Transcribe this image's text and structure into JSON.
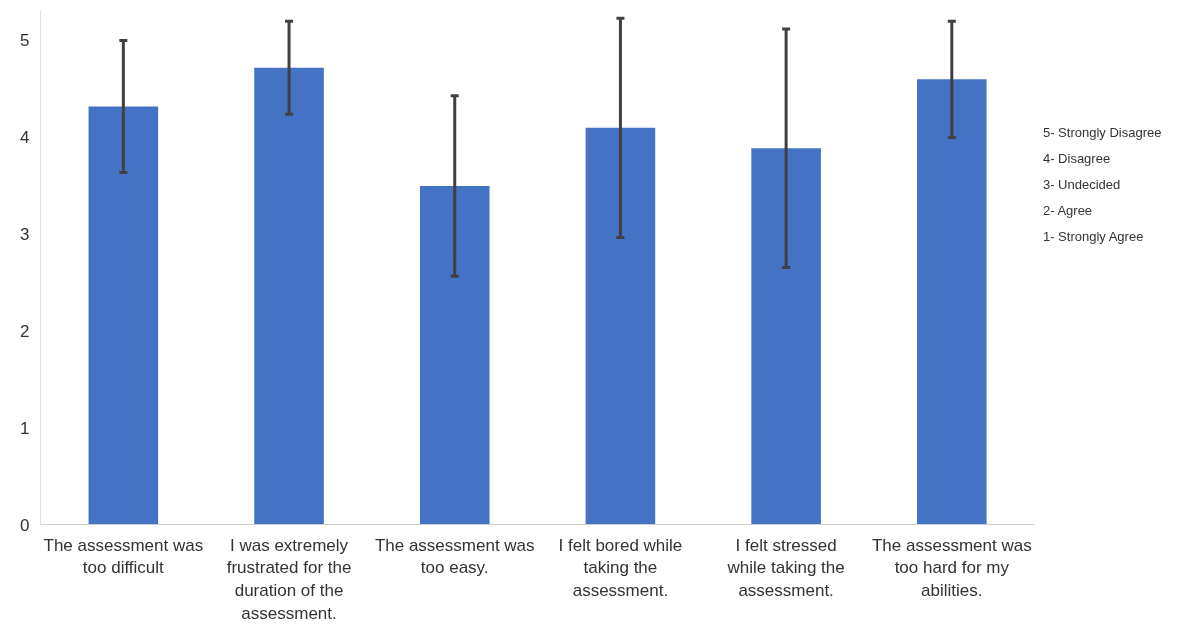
{
  "chart_data": {
    "type": "bar",
    "categories": [
      "The assessment was too difficult",
      "I was extremely frustrated for the duration of the assessment.",
      "The assessment was too easy.",
      "I felt bored while taking the assessment.",
      "I felt stressed while taking the assessment.",
      "The assessment was too hard for my abilities."
    ],
    "values": [
      4.31,
      4.71,
      3.49,
      4.09,
      3.88,
      4.59
    ],
    "errors": [
      0.68,
      0.48,
      0.93,
      1.13,
      1.23,
      0.6
    ],
    "color": "#4472c4",
    "ylim": [
      0,
      5.3
    ],
    "yticks": [
      0,
      1,
      2,
      3,
      4,
      5
    ],
    "grid": false,
    "annotations": [
      "5- Strongly Disagree",
      "4- Disagree",
      "3- Undecided",
      "2- Agree",
      "1- Strongly Agree"
    ]
  }
}
